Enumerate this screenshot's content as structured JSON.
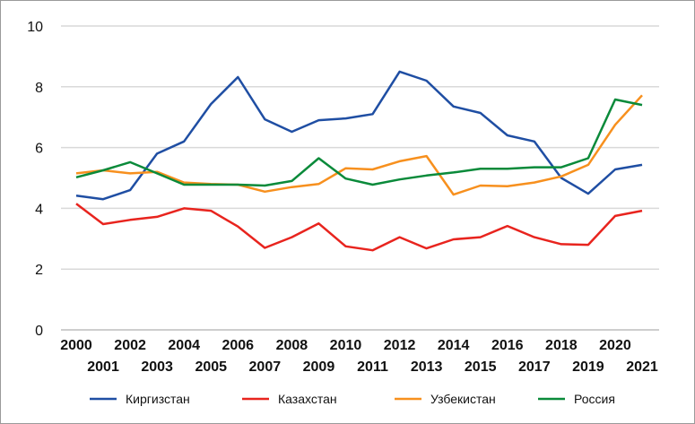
{
  "chart_data": {
    "type": "line",
    "title": "",
    "xlabel": "",
    "ylabel": "",
    "ylim": [
      0,
      10
    ],
    "yticks": [
      0,
      2,
      4,
      6,
      8,
      10
    ],
    "grid": true,
    "legend_position": "bottom",
    "x": [
      "2000",
      "2001",
      "2002",
      "2003",
      "2004",
      "2005",
      "2006",
      "2007",
      "2008",
      "2009",
      "2010",
      "2011",
      "2012",
      "2013",
      "2014",
      "2015",
      "2016",
      "2017",
      "2018",
      "2019",
      "2020",
      "2021"
    ],
    "series": [
      {
        "name": "Киргизстан",
        "color": "#1f4ea3",
        "values": [
          4.42,
          4.3,
          4.6,
          5.8,
          6.2,
          7.43,
          8.32,
          6.93,
          6.52,
          6.9,
          6.96,
          7.1,
          8.5,
          8.2,
          7.35,
          7.14,
          6.4,
          6.2,
          5.0,
          4.48,
          5.28,
          5.43
        ]
      },
      {
        "name": "Казахстан",
        "color": "#e8241e",
        "values": [
          4.15,
          3.48,
          3.62,
          3.72,
          4.0,
          3.92,
          3.4,
          2.7,
          3.05,
          3.5,
          2.75,
          2.62,
          3.05,
          2.68,
          2.98,
          3.05,
          3.42,
          3.05,
          2.82,
          2.8,
          3.75,
          3.92
        ]
      },
      {
        "name": "Узбекистан",
        "color": "#f7901e",
        "values": [
          5.15,
          5.25,
          5.15,
          5.2,
          4.85,
          4.8,
          4.78,
          4.55,
          4.7,
          4.8,
          5.32,
          5.28,
          5.55,
          5.72,
          4.45,
          4.75,
          4.73,
          4.85,
          5.05,
          5.43,
          6.75,
          7.72
        ]
      },
      {
        "name": "Россия",
        "color": "#0a8a3a",
        "values": [
          5.02,
          5.25,
          5.52,
          5.15,
          4.78,
          4.78,
          4.78,
          4.75,
          4.9,
          5.65,
          4.98,
          4.78,
          4.95,
          5.08,
          5.18,
          5.3,
          5.3,
          5.35,
          5.35,
          5.65,
          7.58,
          7.4
        ]
      }
    ]
  }
}
